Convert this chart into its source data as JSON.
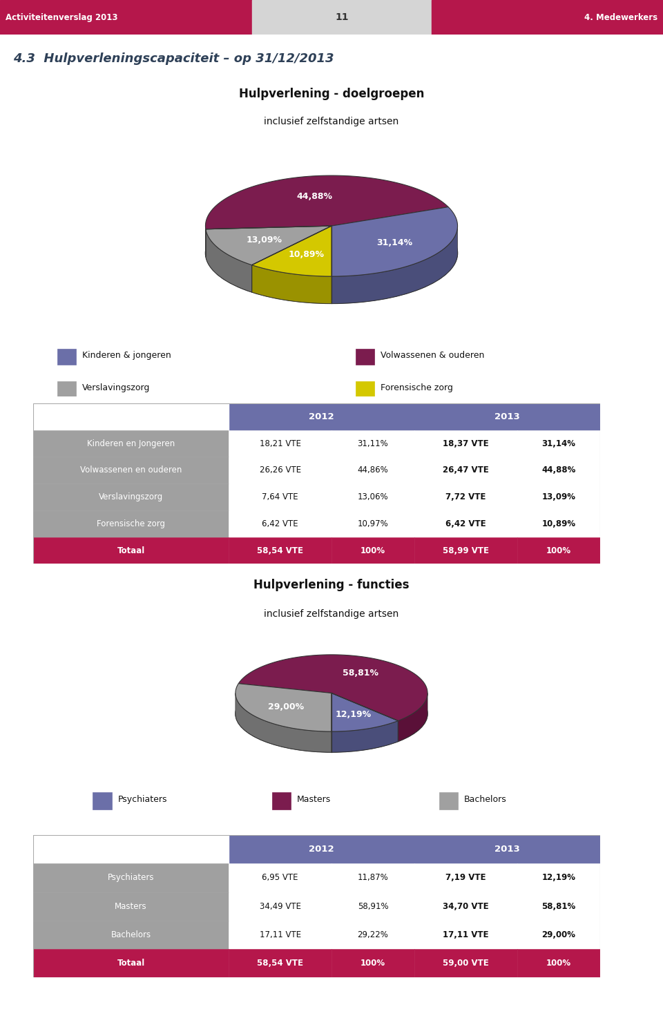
{
  "header_left": "Activiteitenverslag 2013",
  "header_center": "11",
  "header_right": "4. Medewerkers",
  "header_bg": "#B5174B",
  "section_title": "4.3  Hulpverleningscapaciteit – op 31/12/2013",
  "pie1_title": "Hulpverlening - doelgroepen",
  "pie1_subtitle": "inclusief zelfstandige artsen",
  "pie1_values": [
    31.14,
    44.88,
    13.09,
    10.89
  ],
  "pie1_labels": [
    "31,14%",
    "44,88%",
    "13,09%",
    "10,89%"
  ],
  "pie1_colors": [
    "#6B6FA8",
    "#7B1C4E",
    "#A0A0A0",
    "#D4C800"
  ],
  "pie1_dark_colors": [
    "#4A4E7A",
    "#5A1038",
    "#707070",
    "#9A9200"
  ],
  "pie1_legend": [
    "Kinderen & jongeren",
    "Volwassenen & ouderen",
    "Verslavingszorg",
    "Forensische zorg"
  ],
  "pie2_title": "Hulpverlening - functies",
  "pie2_subtitle": "inclusief zelfstandige artsen",
  "pie2_values": [
    12.19,
    58.81,
    29.0
  ],
  "pie2_labels": [
    "12,19%",
    "58,81%",
    "29,00%"
  ],
  "pie2_colors": [
    "#6B6FA8",
    "#7B1C4E",
    "#A0A0A0"
  ],
  "pie2_dark_colors": [
    "#4A4E7A",
    "#5A1038",
    "#707070"
  ],
  "pie2_legend": [
    "Psychiaters",
    "Masters",
    "Bachelors"
  ],
  "table1_header_bg": "#6B6FA8",
  "table1_row_bg_odd": "#A0A0A0",
  "table1_total_bg": "#B5174B",
  "table1_rows": [
    [
      "Kinderen en Jongeren",
      "18,21 VTE",
      "31,11%",
      "18,37 VTE",
      "31,14%"
    ],
    [
      "Volwassenen en ouderen",
      "26,26 VTE",
      "44,86%",
      "26,47 VTE",
      "44,88%"
    ],
    [
      "Verslavingszorg",
      "7,64 VTE",
      "13,06%",
      "7,72 VTE",
      "13,09%"
    ],
    [
      "Forensische zorg",
      "6,42 VTE",
      "10,97%",
      "6,42 VTE",
      "10,89%"
    ],
    [
      "Totaal",
      "58,54 VTE",
      "100%",
      "58,99 VTE",
      "100%"
    ]
  ],
  "table2_header_bg": "#6B6FA8",
  "table2_row_bg_odd": "#A0A0A0",
  "table2_total_bg": "#B5174B",
  "table2_rows": [
    [
      "Psychiaters",
      "6,95 VTE",
      "11,87%",
      "7,19 VTE",
      "12,19%"
    ],
    [
      "Masters",
      "34,49 VTE",
      "58,91%",
      "34,70 VTE",
      "58,81%"
    ],
    [
      "Bachelors",
      "17,11 VTE",
      "29,22%",
      "17,11 VTE",
      "29,00%"
    ],
    [
      "Totaal",
      "58,54 VTE",
      "100%",
      "59,00 VTE",
      "100%"
    ]
  ]
}
